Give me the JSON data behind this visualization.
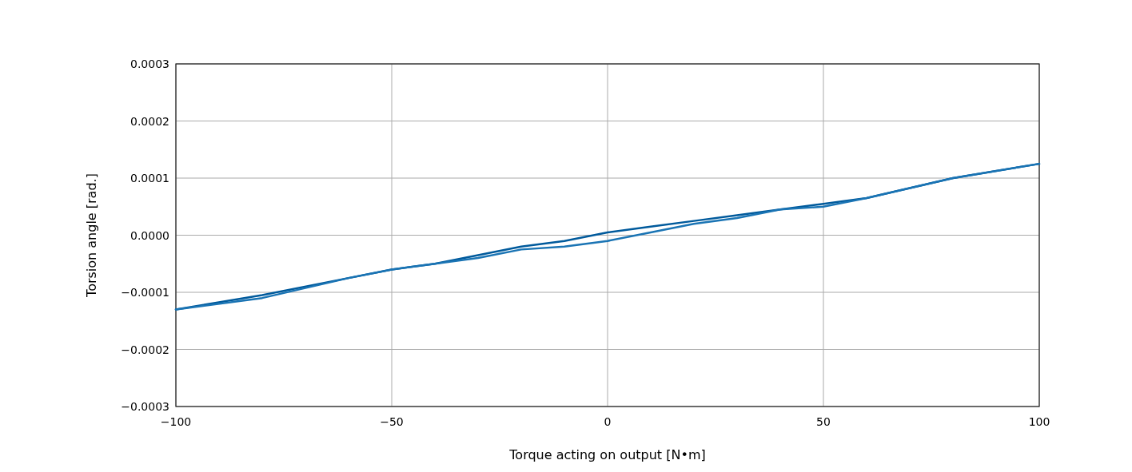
{
  "chart_data": {
    "type": "line",
    "xlabel": "Torque acting on output  [N•m]",
    "ylabel": "Torsion angle  [rad.]",
    "xlim": [
      -100,
      100
    ],
    "ylim": [
      -0.0003,
      0.0003
    ],
    "xticks": [
      {
        "value": -100,
        "label": "−100"
      },
      {
        "value": -50,
        "label": "−50"
      },
      0,
      50,
      100
    ],
    "yticks": [
      {
        "value": -0.0003,
        "label": "−0.0003"
      },
      {
        "value": -0.0002,
        "label": "−0.0002"
      },
      {
        "value": -0.0001,
        "label": "−0.0001"
      },
      {
        "value": 0,
        "label": "0.0000"
      },
      {
        "value": 0.0001,
        "label": "0.0001"
      },
      {
        "value": 0.0002,
        "label": "0.0002"
      },
      {
        "value": 0.0003,
        "label": "0.0003"
      }
    ],
    "grid": true,
    "marker": "none",
    "line_style": "solid",
    "series": [
      {
        "color": "#005a9c",
        "x": [
          -100,
          -80,
          -60,
          -50,
          -40,
          -30,
          -20,
          -10,
          0,
          10,
          20,
          30,
          40,
          50,
          60,
          80,
          100
        ],
        "values": [
          -0.00013,
          -0.000105,
          -7.5e-05,
          -6e-05,
          -5e-05,
          -3.5e-05,
          -2e-05,
          -1e-05,
          5e-06,
          1.5e-05,
          2.5e-05,
          3.5e-05,
          4.5e-05,
          5.5e-05,
          6.5e-05,
          0.0001,
          0.000125
        ]
      },
      {
        "color": "#1a74b4",
        "x": [
          -100,
          -80,
          -60,
          -50,
          -40,
          -30,
          -20,
          -10,
          0,
          10,
          20,
          30,
          40,
          50,
          60,
          80,
          100
        ],
        "values": [
          -0.00013,
          -0.00011,
          -7.5e-05,
          -6e-05,
          -5e-05,
          -4e-05,
          -2.5e-05,
          -2e-05,
          -1e-05,
          5e-06,
          2e-05,
          3e-05,
          4.5e-05,
          5e-05,
          6.5e-05,
          0.0001,
          0.000125
        ]
      }
    ]
  }
}
